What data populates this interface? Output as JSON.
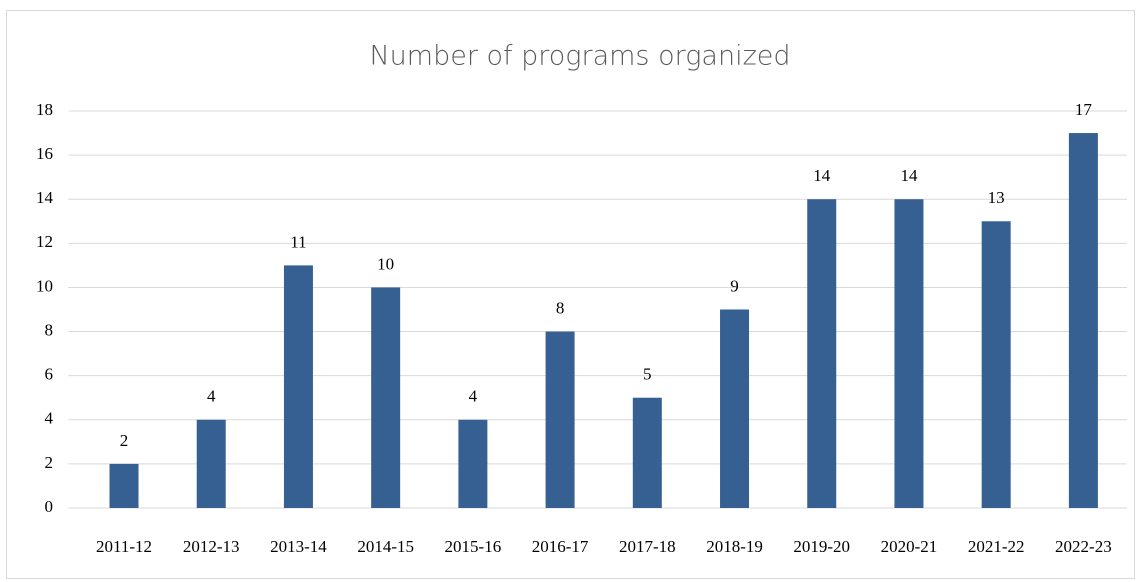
{
  "chart_data": {
    "type": "bar",
    "title": "Number of programs organized",
    "categories": [
      "2011-12",
      "2012-13",
      "2013-14",
      "2014-15",
      "2015-16",
      "2016-17",
      "2017-18",
      "2018-19",
      "2019-20",
      "2020-21",
      "2021-22",
      "2022-23"
    ],
    "values": [
      2,
      4,
      11,
      10,
      4,
      8,
      5,
      9,
      14,
      14,
      13,
      17
    ],
    "color": "#376092",
    "ylim": [
      0,
      18
    ],
    "yticks": [
      0,
      2,
      4,
      6,
      8,
      10,
      12,
      14,
      16,
      18
    ],
    "grid": true
  }
}
